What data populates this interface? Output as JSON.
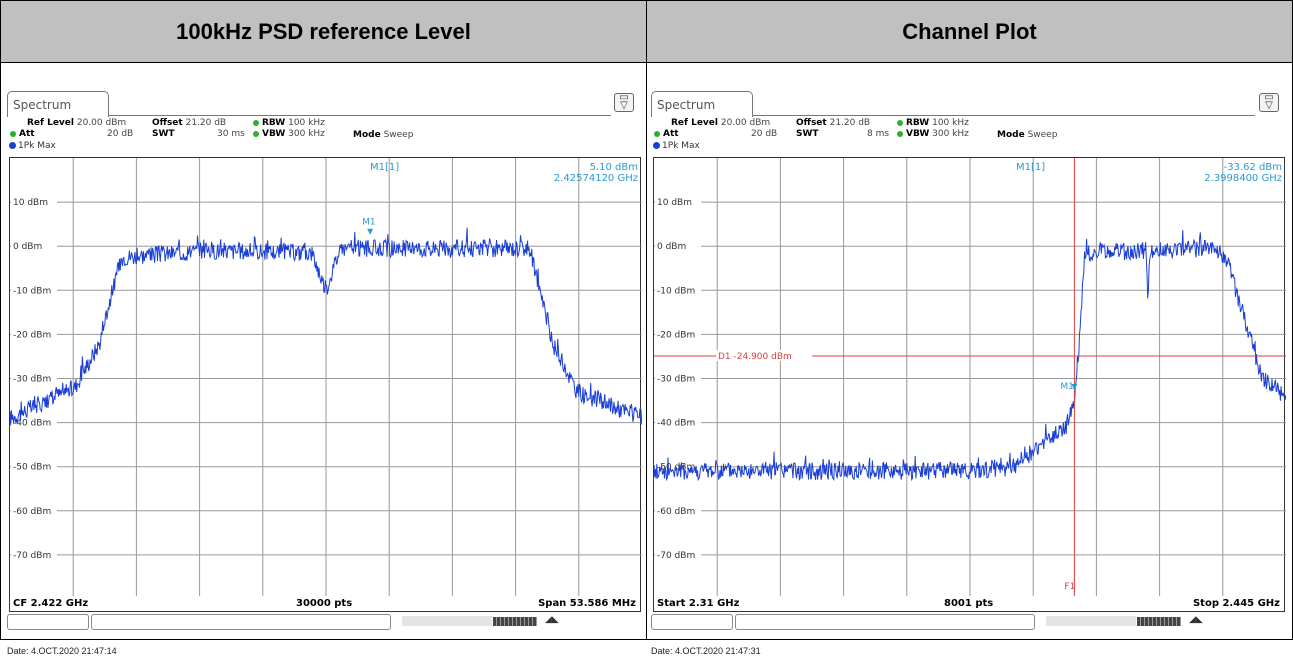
{
  "headers": [
    "100kHz PSD reference Level",
    "Channel Plot"
  ],
  "panels": [
    {
      "tab": "Spectrum",
      "ref_label": "Ref Level",
      "ref_value": "20.00 dBm",
      "offset_label": "Offset",
      "offset_value": "21.20 dB",
      "rbw_label": "RBW",
      "rbw_value": "100 kHz",
      "att_label": "Att",
      "att_value": "20 dB",
      "swt_label": "SWT",
      "swt_value": "30 ms",
      "vbw_label": "VBW",
      "vbw_value": "300 kHz",
      "mode_label": "Mode",
      "mode_value": "Sweep",
      "trace": "1Pk Max",
      "marker_name": "M1[1]",
      "marker_level": "5.10 dBm",
      "marker_freq": "2.42574120 GHz",
      "marker_tag": "M1",
      "y_labels": [
        "10 dBm",
        "0 dBm",
        "-10 dBm",
        "-20 dBm",
        "-30 dBm",
        "-40 dBm",
        "-50 dBm",
        "-60 dBm",
        "-70 dBm"
      ],
      "footer_left": "CF 2.422 GHz",
      "footer_mid": "30000 pts",
      "footer_right": "Span 53.586 MHz",
      "date": "Date: 4.OCT.2020  21:47:14",
      "trace_color": "#1b3fd6"
    },
    {
      "tab": "Spectrum",
      "ref_label": "Ref Level",
      "ref_value": "20.00 dBm",
      "offset_label": "Offset",
      "offset_value": "21.20 dB",
      "rbw_label": "RBW",
      "rbw_value": "100 kHz",
      "att_label": "Att",
      "att_value": "20 dB",
      "swt_label": "SWT",
      "swt_value": "8 ms",
      "vbw_label": "VBW",
      "vbw_value": "300 kHz",
      "mode_label": "Mode",
      "mode_value": "Sweep",
      "trace": "1Pk Max",
      "marker_name": "M1[1]",
      "marker_level": "-33.62 dBm",
      "marker_freq": "2.3998400 GHz",
      "marker_tag": "M1",
      "display_line": "D1  -24.900 dBm",
      "freq_line": "F1",
      "y_labels": [
        "10 dBm",
        "0 dBm",
        "-10 dBm",
        "-20 dBm",
        "-30 dBm",
        "-40 dBm",
        "-50 dBm",
        "-60 dBm",
        "-70 dBm"
      ],
      "footer_left": "Start 2.31 GHz",
      "footer_mid": "8001 pts",
      "footer_right": "Stop 2.445 GHz",
      "date": "Date: 4.OCT.2020  21:47:31",
      "trace_color": "#1b3fd6",
      "line_color": "#d94040"
    }
  ],
  "chart_data": [
    {
      "type": "line",
      "title": "",
      "xlabel": "",
      "ylabel": "",
      "ylim": [
        -80,
        20
      ],
      "x_center_ghz": 2.422,
      "span_mhz": 53.586,
      "series": [
        {
          "x_mhz_offset": [
            -26.8,
            -21.3,
            -19.2,
            -18.3,
            -17.3,
            -10,
            -1.2,
            0,
            1.2,
            10,
            17.3,
            18.3,
            19.2,
            21.3,
            26.8
          ],
          "y_dbm": [
            -39,
            -32,
            -22,
            -12,
            -2.5,
            -1,
            -1.5,
            -10,
            -0.5,
            -0.5,
            -0.5,
            -12,
            -22,
            -33,
            -39
          ]
        }
      ],
      "marker": {
        "freq_ghz": 2.4257412,
        "level_dbm": 5.1
      }
    },
    {
      "type": "line",
      "title": "",
      "xlabel": "",
      "ylabel": "",
      "ylim": [
        -80,
        20
      ],
      "x_start_ghz": 2.31,
      "x_stop_ghz": 2.445,
      "series": [
        {
          "x_ghz": [
            2.31,
            2.34,
            2.38,
            2.3867,
            2.393,
            2.398,
            2.3998,
            2.401,
            2.402,
            2.415,
            2.4155,
            2.416,
            2.428,
            2.432,
            2.44,
            2.445
          ],
          "y_dbm": [
            -51,
            -51,
            -51,
            -50,
            -45,
            -41,
            -35,
            -20,
            -1.5,
            -1,
            -11,
            -1,
            -0.5,
            -2,
            -30,
            -34
          ]
        }
      ],
      "display_line_dbm": -24.9,
      "freq_line_ghz": 2.3998,
      "marker": {
        "freq_ghz": 2.39984,
        "level_dbm": -33.62
      }
    }
  ]
}
